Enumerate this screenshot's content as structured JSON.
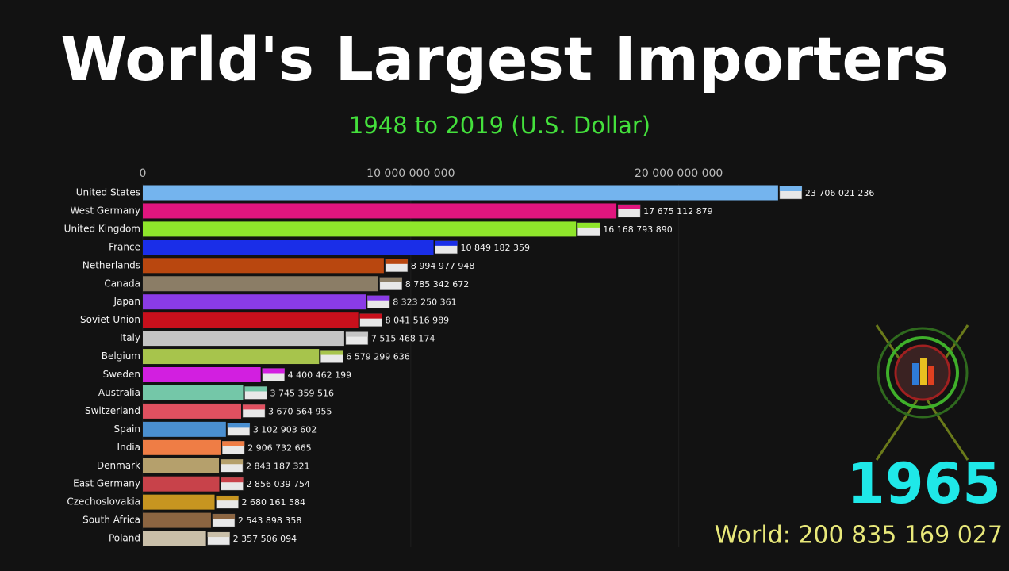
{
  "chart_data": {
    "type": "bar",
    "orientation": "horizontal",
    "title": "World's Largest Importers",
    "subtitle": "1948 to 2019 (U.S. Dollar)",
    "year": "1965",
    "total": "World: 200 835 169 027",
    "categories": [
      "United States",
      "West Germany",
      "United Kingdom",
      "France",
      "Netherlands",
      "Canada",
      "Japan",
      "Soviet Union",
      "Italy",
      "Belgium",
      "Sweden",
      "Australia",
      "Switzerland",
      "Spain",
      "India",
      "Denmark",
      "East Germany",
      "Czechoslovakia",
      "South Africa",
      "Poland"
    ],
    "values": [
      23706021236,
      17675112879,
      16168793890,
      10849182359,
      8994977948,
      8785342672,
      8323250361,
      8041516989,
      7515468174,
      6579299636,
      4400462199,
      3745359516,
      3670564955,
      3102903602,
      2906732665,
      2843187321,
      2856039754,
      2680161584,
      2543898358,
      2357506094
    ],
    "value_labels": [
      "23 706 021 236",
      "17 675 112 879",
      "16 168 793 890",
      "10 849 182 359",
      "8 994 977 948",
      "8 785 342 672",
      "8 323 250 361",
      "8 041 516 989",
      "7 515 468 174",
      "6 579 299 636",
      "4 400 462 199",
      "3 745 359 516",
      "3 670 564 955",
      "3 102 903 602",
      "2 906 732 665",
      "2 843 187 321",
      "2 856 039 754",
      "2 680 161 584",
      "2 543 898 358",
      "2 357 506 094"
    ],
    "colors": [
      "#74b4ee",
      "#e0157e",
      "#8fe62b",
      "#1a2ee8",
      "#b9470f",
      "#8b7d66",
      "#8a3be6",
      "#c8101c",
      "#c4c4c4",
      "#a7c44c",
      "#d21fe0",
      "#74c7a8",
      "#e05060",
      "#4a8fd0",
      "#ef7d45",
      "#b5a06c",
      "#c8424a",
      "#c79520",
      "#8c6541",
      "#c9bfa9"
    ],
    "xlim": [
      0,
      29600000000
    ],
    "xticks": [
      0,
      {
        "value": 10000000000,
        "label": "10 000 000 000"
      },
      {
        "value": 20000000000,
        "label": "20 000 000 000"
      }
    ],
    "grid": true
  }
}
